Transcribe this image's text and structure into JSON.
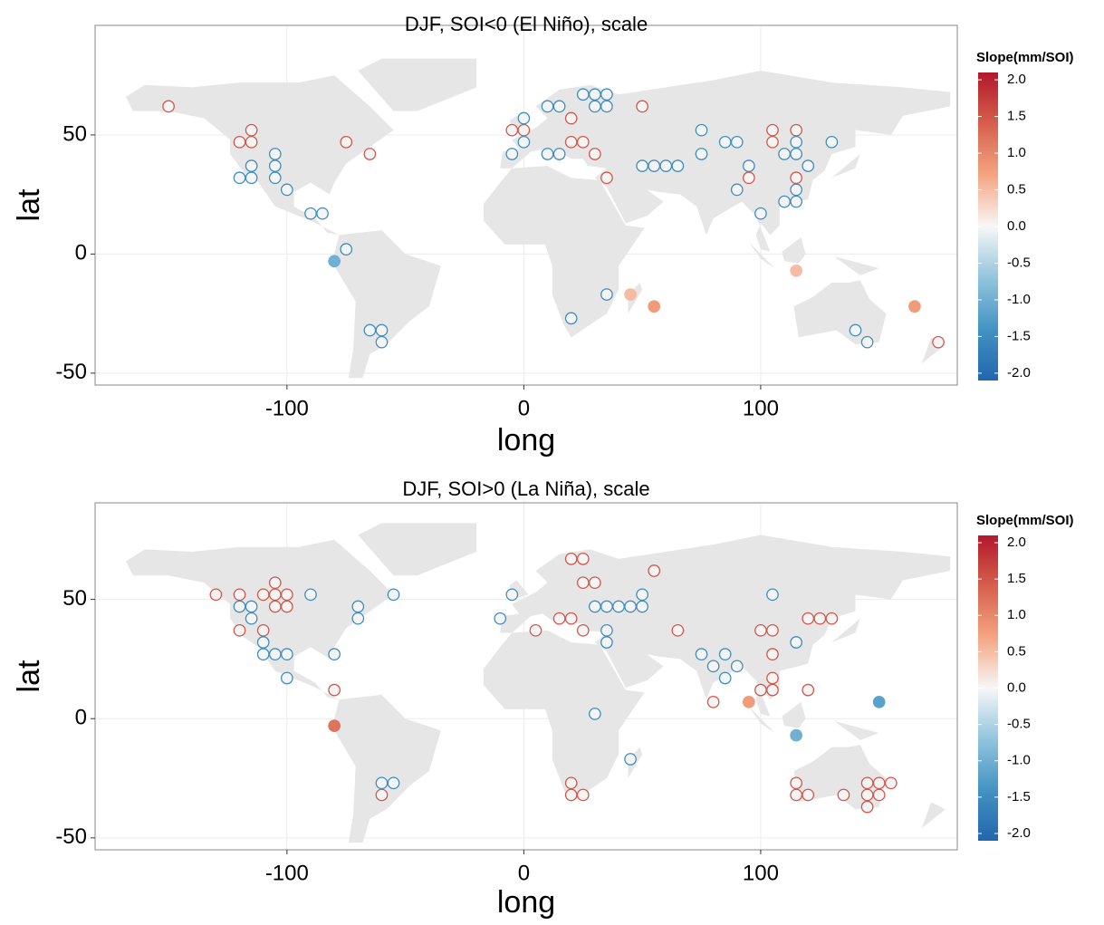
{
  "chart_data": [
    {
      "type": "scatter",
      "title": "DJF, SOI<0 (El Niño), scale",
      "x_label": "long",
      "y_label": "lat",
      "xlim": [
        -181,
        183
      ],
      "ylim": [
        -55,
        96
      ],
      "xticks": [
        -100,
        0,
        100
      ],
      "yticks": [
        -50,
        0,
        50
      ],
      "grid": true,
      "colorbar": {
        "title": "Slope(mm/SOI)",
        "clim": [
          -2.1,
          2.1
        ],
        "colors": [
          "#2166ac",
          "#4393c3",
          "#92c5de",
          "#f7f7f7",
          "#f4a582",
          "#d6604d",
          "#b2182b"
        ],
        "ticks": [
          {
            "value": 2,
            "label": "2.0"
          },
          1.5,
          {
            "value": 1,
            "label": "1.0"
          },
          0.5,
          {
            "value": 0,
            "label": "0.0"
          },
          -0.5,
          {
            "value": -1,
            "label": "-1.0"
          },
          -1.5,
          {
            "value": -2,
            "label": "-2.0"
          }
        ]
      },
      "x": [
        -150,
        -120,
        -115,
        -115,
        -75,
        -65,
        20,
        -5,
        0,
        20,
        25,
        30,
        35,
        50,
        105,
        105,
        115,
        115,
        95,
        175,
        45,
        55,
        165,
        115,
        -120,
        -115,
        -115,
        -105,
        -105,
        -105,
        -100,
        -90,
        -85,
        -75,
        -80,
        -60,
        -65,
        -60,
        0,
        0,
        -5,
        10,
        15,
        10,
        15,
        25,
        30,
        35,
        30,
        35,
        50,
        55,
        60,
        65,
        75,
        75,
        85,
        90,
        90,
        95,
        100,
        110,
        115,
        115,
        120,
        110,
        115,
        115,
        130,
        20,
        35,
        140,
        145
      ],
      "y": [
        62,
        47,
        52,
        47,
        47,
        42,
        57,
        52,
        52,
        47,
        47,
        42,
        32,
        62,
        52,
        47,
        52,
        32,
        32,
        -37,
        -17,
        -22,
        -22,
        -7,
        32,
        32,
        37,
        42,
        37,
        32,
        27,
        17,
        17,
        2,
        -3,
        -32,
        -32,
        -37,
        57,
        47,
        42,
        62,
        62,
        42,
        42,
        67,
        67,
        67,
        62,
        62,
        37,
        37,
        37,
        37,
        52,
        42,
        47,
        47,
        27,
        37,
        17,
        42,
        47,
        42,
        37,
        22,
        22,
        27,
        47,
        -27,
        -17,
        -32,
        -37
      ],
      "values": [
        1.5,
        1.5,
        1.5,
        1.5,
        1.5,
        1.5,
        1.5,
        1.5,
        1.5,
        1.5,
        1.5,
        1.5,
        1.5,
        1.5,
        1.5,
        1.5,
        1.5,
        1.5,
        1.5,
        1.5,
        0.5,
        0.8,
        0.8,
        0.5,
        -1.5,
        -1.5,
        -1.5,
        -1.5,
        -1.5,
        -1.5,
        -1.5,
        -1.5,
        -1.5,
        -1.5,
        -1,
        -1.5,
        -1.5,
        -1.5,
        -1.5,
        -1.5,
        -1.5,
        -1.5,
        -1.5,
        -1.5,
        -1.5,
        -1.5,
        -1.5,
        -1.5,
        -1.5,
        -1.5,
        -1.5,
        -1.5,
        -1.5,
        -1.5,
        -1.5,
        -1.5,
        -1.5,
        -1.5,
        -1.5,
        -1.5,
        -1.5,
        -1.5,
        -1.5,
        -1.5,
        -1.5,
        -1.5,
        -1.5,
        -1.5,
        -1.5,
        -1.5,
        -1.5,
        -1.5,
        -1.5
      ]
    },
    {
      "type": "scatter",
      "title": "DJF, SOI>0 (La Niña), scale",
      "x_label": "long",
      "y_label": "lat",
      "xlim": [
        -181,
        183
      ],
      "ylim": [
        -55,
        90.5
      ],
      "xticks": [
        -100,
        0,
        100
      ],
      "yticks": [
        -50,
        0,
        50
      ],
      "grid": true,
      "colorbar": {
        "title": "Slope(mm/SOI)",
        "clim": [
          -2.1,
          2.1
        ],
        "colors": [
          "#2166ac",
          "#4393c3",
          "#92c5de",
          "#f7f7f7",
          "#f4a582",
          "#d6604d",
          "#b2182b"
        ],
        "ticks": [
          {
            "value": 2,
            "label": "2.0"
          },
          1.5,
          {
            "value": 1,
            "label": "1.0"
          },
          0.5,
          {
            "value": 0,
            "label": "0.0"
          },
          -0.5,
          {
            "value": -1,
            "label": "-1.0"
          },
          -1.5,
          {
            "value": -2,
            "label": "-2.0"
          }
        ]
      },
      "x": [
        -130,
        -120,
        -120,
        -110,
        -110,
        -105,
        -105,
        -100,
        -100,
        -105,
        -80,
        -80,
        -60,
        20,
        25,
        25,
        30,
        15,
        20,
        5,
        25,
        55,
        65,
        80,
        95,
        100,
        105,
        105,
        105,
        100,
        105,
        120,
        125,
        130,
        120,
        20,
        20,
        25,
        115,
        115,
        120,
        135,
        145,
        150,
        155,
        145,
        150,
        145,
        -120,
        -115,
        -115,
        -110,
        -110,
        -105,
        -100,
        -100,
        -80,
        -90,
        -70,
        -70,
        -55,
        -60,
        -55,
        -10,
        -5,
        50,
        30,
        35,
        40,
        45,
        50,
        35,
        35,
        30,
        45,
        75,
        85,
        80,
        85,
        90,
        105,
        115,
        150,
        115
      ],
      "y": [
        52,
        52,
        37,
        37,
        52,
        52,
        57,
        52,
        47,
        47,
        12,
        -3,
        -32,
        67,
        67,
        57,
        57,
        42,
        42,
        37,
        37,
        62,
        37,
        7,
        7,
        37,
        37,
        27,
        17,
        12,
        12,
        42,
        42,
        42,
        12,
        -27,
        -32,
        -32,
        -27,
        -32,
        -32,
        -32,
        -27,
        -27,
        -27,
        -32,
        -32,
        -37,
        47,
        47,
        42,
        32,
        27,
        27,
        27,
        17,
        27,
        52,
        47,
        42,
        52,
        -27,
        -27,
        42,
        52,
        52,
        47,
        47,
        47,
        47,
        47,
        32,
        37,
        2,
        -17,
        27,
        27,
        22,
        17,
        22,
        52,
        32,
        7,
        -7
      ],
      "values": [
        1.5,
        1.5,
        1.5,
        1.5,
        1.5,
        1.5,
        1.5,
        1.5,
        1.5,
        1.5,
        1.5,
        1.2,
        1.5,
        1.5,
        1.5,
        1.5,
        1.5,
        1.5,
        1.5,
        1.5,
        1.5,
        1.5,
        1.5,
        1.5,
        0.8,
        1.5,
        1.5,
        1.5,
        1.5,
        1.5,
        1.5,
        1.5,
        1.5,
        1.5,
        1.5,
        1.5,
        1.5,
        1.5,
        1.5,
        1.5,
        1.5,
        1.5,
        1.5,
        1.5,
        1.5,
        1.5,
        1.5,
        1.5,
        -1.5,
        -1.5,
        -1.5,
        -1.5,
        -1.5,
        -1.5,
        -1.5,
        -1.5,
        -1.5,
        -1.5,
        -1.5,
        -1.5,
        -1.5,
        -1.5,
        -1.5,
        -1.5,
        -1.5,
        -1.5,
        -1.5,
        -1.5,
        -1.5,
        -1.5,
        -1.5,
        -1.5,
        -1.5,
        -1.5,
        -1.5,
        -1.5,
        -1.5,
        -1.5,
        -1.5,
        -1.5,
        -1.5,
        -1.5,
        -1.2,
        -1
      ]
    }
  ]
}
